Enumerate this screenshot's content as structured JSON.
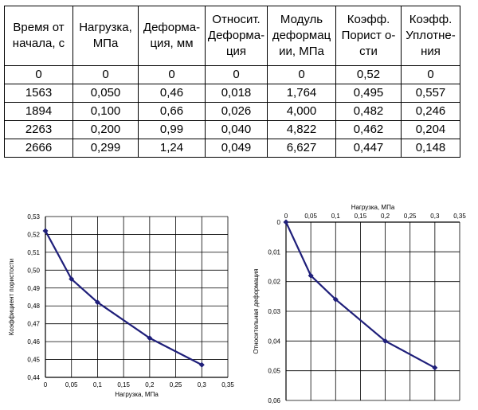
{
  "table": {
    "headers": [
      [
        "Время от",
        "начала, с"
      ],
      [
        "Нагрузка,",
        "МПа"
      ],
      [
        "Деформа-",
        "ция, мм"
      ],
      [
        "Относит.",
        "Деформа-",
        "ция"
      ],
      [
        "Модуль",
        "деформац",
        "ии, МПа"
      ],
      [
        "Коэфф.",
        "Порист о-",
        "сти"
      ],
      [
        "Коэфф.",
        "Уплотне-",
        "ния"
      ]
    ],
    "rows": [
      [
        "0",
        "0",
        "0",
        "0",
        "0",
        "0,52",
        "0"
      ],
      [
        "1563",
        "0,050",
        "0,46",
        "0,018",
        "1,764",
        "0,495",
        "0,557"
      ],
      [
        "1894",
        "0,100",
        "0,66",
        "0,026",
        "4,000",
        "0,482",
        "0,246"
      ],
      [
        "2263",
        "0,200",
        "0,99",
        "0,040",
        "4,822",
        "0,462",
        "0,204"
      ],
      [
        "2666",
        "0,299",
        "1,24",
        "0,049",
        "6,627",
        "0,447",
        "0,148"
      ]
    ]
  },
  "chart_data": [
    {
      "type": "line",
      "title": "",
      "xlabel": "Нагрузка, МПа",
      "ylabel": "Коэффициент пористости",
      "x": [
        0,
        0.05,
        0.1,
        0.2,
        0.3
      ],
      "values": [
        0.522,
        0.495,
        0.482,
        0.462,
        0.447
      ],
      "xlim": [
        0,
        0.35
      ],
      "ylim": [
        0.44,
        0.53
      ],
      "xticks": [
        "0",
        "0,05",
        "0,1",
        "0,15",
        "0,2",
        "0,25",
        "0,3",
        "0,35"
      ],
      "yticks": [
        "0,44",
        "0,45",
        "0,46",
        "0,47",
        "0,48",
        "0,49",
        "0,50",
        "0,51",
        "0,52",
        "0,53"
      ],
      "grid": true,
      "line_color": "#1f1f7a"
    },
    {
      "type": "line",
      "title": "",
      "xlabel": "Нагрузка, МПа",
      "ylabel": "Относительная деформация",
      "x": [
        0,
        0.05,
        0.1,
        0.2,
        0.3
      ],
      "values": [
        0,
        0.018,
        0.026,
        0.04,
        0.049
      ],
      "xlim": [
        0,
        0.35
      ],
      "ylim": [
        0,
        0.06
      ],
      "x_axis_position": "top",
      "y_inverted": true,
      "xticks": [
        "0",
        "0,05",
        "0,1",
        "0,15",
        "0,2",
        "0,25",
        "0,3",
        "0,35"
      ],
      "yticks": [
        "0",
        "0,01",
        "0,02",
        "0,03",
        "0,04",
        "0,05",
        "0,06"
      ],
      "grid": true,
      "line_color": "#1f1f7a"
    }
  ]
}
